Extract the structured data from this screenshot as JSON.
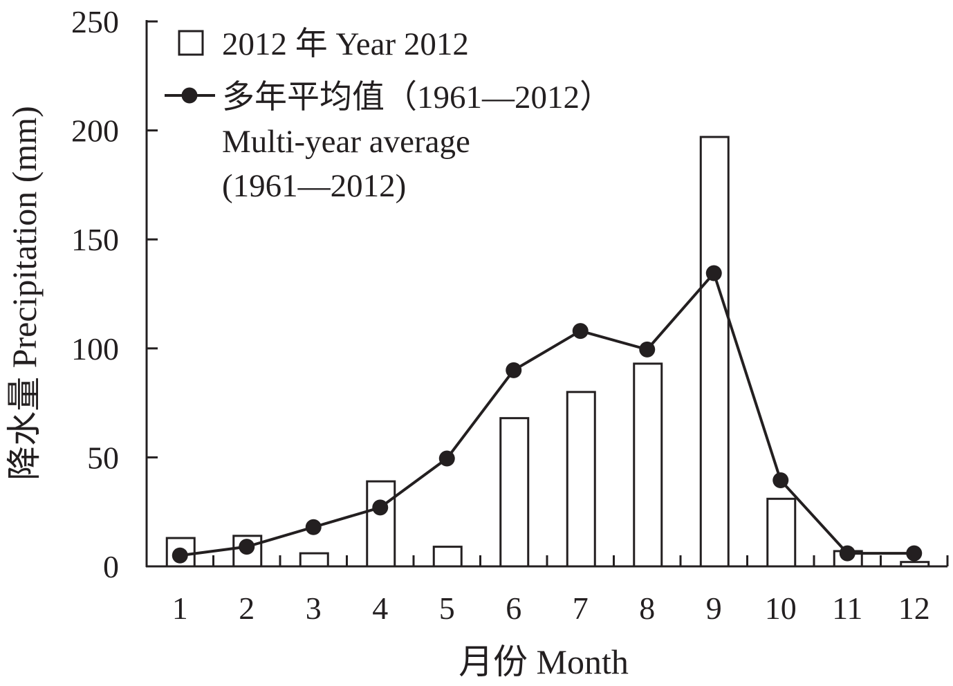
{
  "chart_data": {
    "type": "bar",
    "categories": [
      "1",
      "2",
      "3",
      "4",
      "5",
      "6",
      "7",
      "8",
      "9",
      "10",
      "11",
      "12"
    ],
    "series": [
      {
        "name": "2012 年 Year 2012",
        "type": "bar",
        "values": [
          13,
          14,
          6,
          39,
          9,
          68,
          80,
          93,
          197,
          31,
          7,
          2
        ]
      },
      {
        "name": "多年平均值（1961—2012） Multi-year average (1961—2012)",
        "type": "line",
        "values": [
          5,
          9,
          18,
          27,
          49.5,
          90,
          108,
          99.5,
          134.5,
          39.5,
          6,
          6
        ]
      }
    ],
    "xlabel": "月份 Month",
    "ylabel": "降水量 Precipitation (mm)",
    "ylim": [
      0,
      250
    ],
    "yticks": [
      "0",
      "50",
      "100",
      "150",
      "200",
      "250"
    ],
    "grid": false,
    "legend_position": "top-left",
    "legend": {
      "bar_label": "2012 年 Year 2012",
      "line_label_lines": [
        "多年平均值（1961—2012）",
        "Multi-year average",
        "(1961—2012)"
      ]
    },
    "colors": {
      "ink": "#231f20",
      "bar_fill": "#ffffff"
    }
  }
}
